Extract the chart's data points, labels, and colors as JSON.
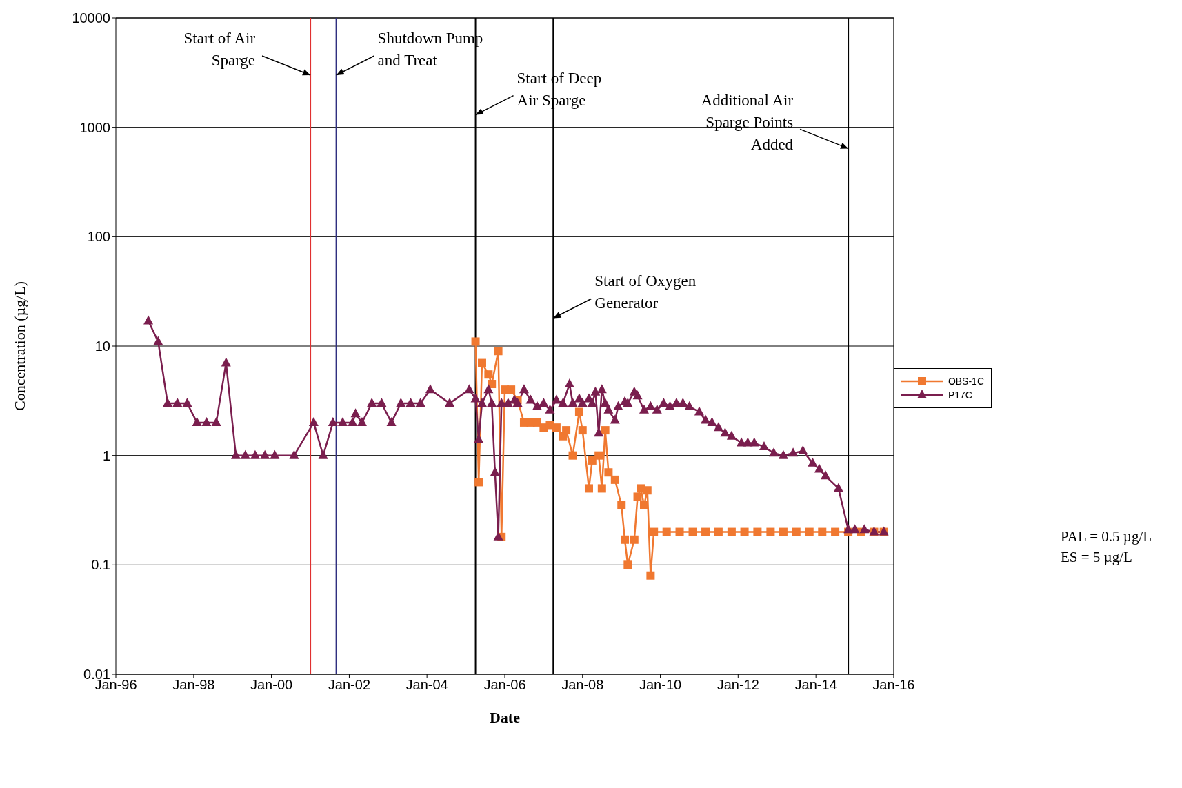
{
  "chart_data": {
    "type": "line",
    "xlabel": "Date",
    "ylabel": "Concentration (µg/L)",
    "log": "y",
    "grid": "y",
    "legend": "right",
    "xlim": [
      "1996-01",
      "2016-01"
    ],
    "xticks": [
      {
        "value": "1996-01",
        "label": "Jan-96"
      },
      {
        "value": "1998-01",
        "label": "Jan-98"
      },
      {
        "value": "2000-01",
        "label": "Jan-00"
      },
      {
        "value": "2002-01",
        "label": "Jan-02"
      },
      {
        "value": "2004-01",
        "label": "Jan-04"
      },
      {
        "value": "2006-01",
        "label": "Jan-06"
      },
      {
        "value": "2008-01",
        "label": "Jan-08"
      },
      {
        "value": "2010-01",
        "label": "Jan-10"
      },
      {
        "value": "2012-01",
        "label": "Jan-12"
      },
      {
        "value": "2014-01",
        "label": "Jan-14"
      },
      {
        "value": "2016-01",
        "label": "Jan-16"
      }
    ],
    "ylim": [
      0.01,
      10000
    ],
    "yticks": [
      0.01,
      0.1,
      1,
      10,
      100,
      1000,
      10000
    ],
    "series": [
      {
        "name": "OBS-1C",
        "color": "#f07830",
        "marker": "square",
        "x": [
          "2005-04",
          "2005-05",
          "2005-06",
          "2005-08",
          "2005-09",
          "2005-11",
          "2005-12",
          "2006-01",
          "2006-03",
          "2006-05",
          "2006-07",
          "2006-09",
          "2006-11",
          "2007-01",
          "2007-03",
          "2007-05",
          "2007-07",
          "2007-08",
          "2007-10",
          "2007-12",
          "2008-01",
          "2008-03",
          "2008-04",
          "2008-06",
          "2008-07",
          "2008-08",
          "2008-09",
          "2008-11",
          "2009-01",
          "2009-02",
          "2009-03",
          "2009-05",
          "2009-06",
          "2009-07",
          "2009-08",
          "2009-09",
          "2009-10",
          "2009-11",
          "2010-03",
          "2010-07",
          "2010-11",
          "2011-03",
          "2011-07",
          "2011-11",
          "2012-03",
          "2012-07",
          "2012-11",
          "2013-03",
          "2013-07",
          "2013-11",
          "2014-03",
          "2014-07",
          "2014-11",
          "2015-03",
          "2015-07",
          "2015-10"
        ],
        "values": [
          11,
          0.57,
          7,
          5.5,
          4.5,
          9,
          0.18,
          4,
          4,
          3.2,
          2,
          2,
          2,
          1.8,
          1.9,
          1.8,
          1.5,
          1.7,
          1.0,
          2.5,
          1.7,
          0.5,
          0.9,
          1.0,
          0.5,
          1.7,
          0.7,
          0.6,
          0.35,
          0.17,
          0.1,
          0.17,
          0.42,
          0.5,
          0.35,
          0.48,
          0.08,
          0.2,
          0.2,
          0.2,
          0.2,
          0.2,
          0.2,
          0.2,
          0.2,
          0.2,
          0.2,
          0.2,
          0.2,
          0.2,
          0.2,
          0.2,
          0.2,
          0.2,
          0.2,
          0.2
        ]
      },
      {
        "name": "P17C",
        "color": "#7a1e4e",
        "marker": "triangle",
        "x": [
          "1996-11",
          "1997-02",
          "1997-05",
          "1997-08",
          "1997-11",
          "1998-02",
          "1998-05",
          "1998-08",
          "1998-11",
          "1999-02",
          "1999-05",
          "1999-08",
          "1999-11",
          "2000-02",
          "2000-08",
          "2001-02",
          "2001-05",
          "2001-08",
          "2001-11",
          "2002-02",
          "2002-03",
          "2002-05",
          "2002-08",
          "2002-11",
          "2003-02",
          "2003-05",
          "2003-08",
          "2003-11",
          "2004-02",
          "2004-08",
          "2005-02",
          "2005-04",
          "2005-05",
          "2005-06",
          "2005-08",
          "2005-09",
          "2005-10",
          "2005-11",
          "2005-12",
          "2006-02",
          "2006-04",
          "2006-05",
          "2006-07",
          "2006-09",
          "2006-11",
          "2007-01",
          "2007-03",
          "2007-05",
          "2007-07",
          "2007-09",
          "2007-10",
          "2007-12",
          "2008-01",
          "2008-03",
          "2008-04",
          "2008-05",
          "2008-06",
          "2008-07",
          "2008-08",
          "2008-09",
          "2008-11",
          "2008-12",
          "2009-02",
          "2009-03",
          "2009-05",
          "2009-06",
          "2009-08",
          "2009-10",
          "2009-12",
          "2010-02",
          "2010-04",
          "2010-06",
          "2010-08",
          "2010-10",
          "2011-01",
          "2011-03",
          "2011-05",
          "2011-07",
          "2011-09",
          "2011-11",
          "2012-02",
          "2012-04",
          "2012-06",
          "2012-09",
          "2012-12",
          "2013-03",
          "2013-06",
          "2013-09",
          "2013-12",
          "2014-02",
          "2014-04",
          "2014-08",
          "2014-11",
          "2015-01",
          "2015-04",
          "2015-07",
          "2015-10"
        ],
        "values": [
          17,
          11,
          3,
          3,
          3,
          2,
          2,
          2,
          7,
          1,
          1,
          1,
          1,
          1,
          1,
          2,
          1,
          2,
          2,
          2,
          2.4,
          2,
          3,
          3,
          2,
          3,
          3,
          3,
          4,
          3,
          4,
          3.3,
          1.4,
          3,
          4,
          3,
          0.7,
          0.18,
          3,
          3,
          3.2,
          3,
          4,
          3.2,
          2.8,
          3,
          2.6,
          3.2,
          3,
          4.5,
          3,
          3.3,
          3,
          3.3,
          3,
          3.8,
          1.6,
          4,
          3,
          2.6,
          2.1,
          2.8,
          3.1,
          3,
          3.8,
          3.5,
          2.6,
          2.8,
          2.6,
          3,
          2.8,
          3,
          3,
          2.8,
          2.5,
          2.1,
          2.0,
          1.8,
          1.6,
          1.5,
          1.3,
          1.3,
          1.3,
          1.2,
          1.05,
          1.0,
          1.05,
          1.1,
          0.85,
          0.75,
          0.65,
          0.5,
          0.21,
          0.21,
          0.21,
          0.2,
          0.2
        ]
      }
    ],
    "ref_lines": [
      {
        "axis": "x",
        "value": "2001-01",
        "color": "#e03030"
      },
      {
        "axis": "x",
        "value": "2001-09",
        "color": "#303080"
      },
      {
        "axis": "x",
        "value": "2005-04",
        "color": "#000000"
      },
      {
        "axis": "x",
        "value": "2007-04",
        "color": "#000000"
      },
      {
        "axis": "x",
        "value": "2014-11",
        "color": "#000000"
      }
    ],
    "annotations": [
      {
        "text": "Start of Air Sparge",
        "x": "2001-01",
        "y": 3000
      },
      {
        "text": "Shutdown Pump and Treat",
        "x": "2001-09",
        "y": 3000
      },
      {
        "text": "Start of Deep Air Sparge",
        "x": "2005-04",
        "y": 1300
      },
      {
        "text": "Start of Oxygen Generator",
        "x": "2007-04",
        "y": 18
      },
      {
        "text": "Additional Air Sparge Points Added",
        "x": "2014-11",
        "y": 640
      },
      "PAL = 0.5 µg/L",
      "ES = 5 µg/L"
    ]
  }
}
